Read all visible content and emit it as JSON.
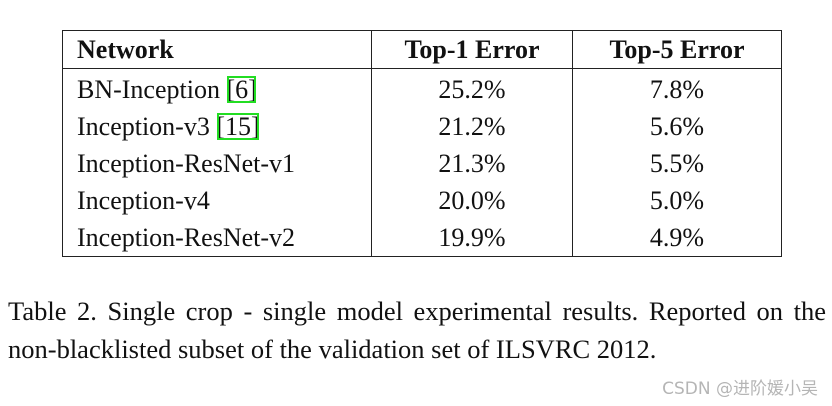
{
  "table": {
    "header": [
      "Network",
      "Top-1 Error",
      "Top-5 Error"
    ],
    "rows": [
      {
        "network": "BN-Inception",
        "cite": "[6]",
        "top1": "25.2%",
        "top5": "7.8%"
      },
      {
        "network": "Inception-v3",
        "cite": "[15]",
        "top1": "21.2%",
        "top5": "5.6%"
      },
      {
        "network": "Inception-ResNet-v1",
        "top1": "21.3%",
        "top5": "5.5%"
      },
      {
        "network": "Inception-v4",
        "top1": "20.0%",
        "top5": "5.0%"
      },
      {
        "network": "Inception-ResNet-v2",
        "top1": "19.9%",
        "top5": "4.9%"
      }
    ]
  },
  "caption": "Table 2. Single crop - single model experimental results. Reported on the non-blacklisted subset of the validation set of ILSVRC 2012.",
  "watermark": "CSDN @进阶媛小吴"
}
